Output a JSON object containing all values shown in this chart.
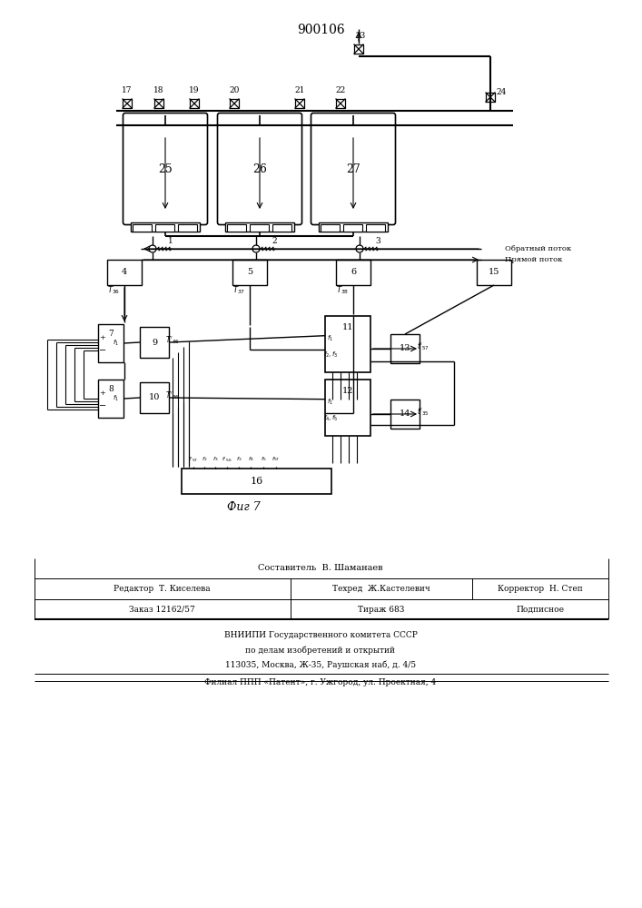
{
  "patent_number": "900106",
  "fig_label": "Фиг 7",
  "background_color": "#ffffff",
  "line_color": "#000000",
  "obratny_potok": "Обратный поток",
  "pryamoy_potok": "Прямой поток",
  "sestavitel": "Составитель  В. Шаманаев",
  "redaktor": "Редактор  Т. Киселева",
  "tehred": "Техред  Ж.Кастелевич",
  "korrektor": "Корректор  Н. Степ",
  "zakaz": "Заказ 12162/57",
  "tirazh": "Тираж 683",
  "podpisnoe": "Подписное",
  "vniipii1": "ВНИИПИ Государственного комитета СССР",
  "vniipii2": "по делам изобретений и открытий",
  "address": "113035, Москва, Ж-35, Раушская наб, д. 4/5",
  "filial": "Филиал ППП «Патент», г. Ужгород, ул. Проектная, 4"
}
